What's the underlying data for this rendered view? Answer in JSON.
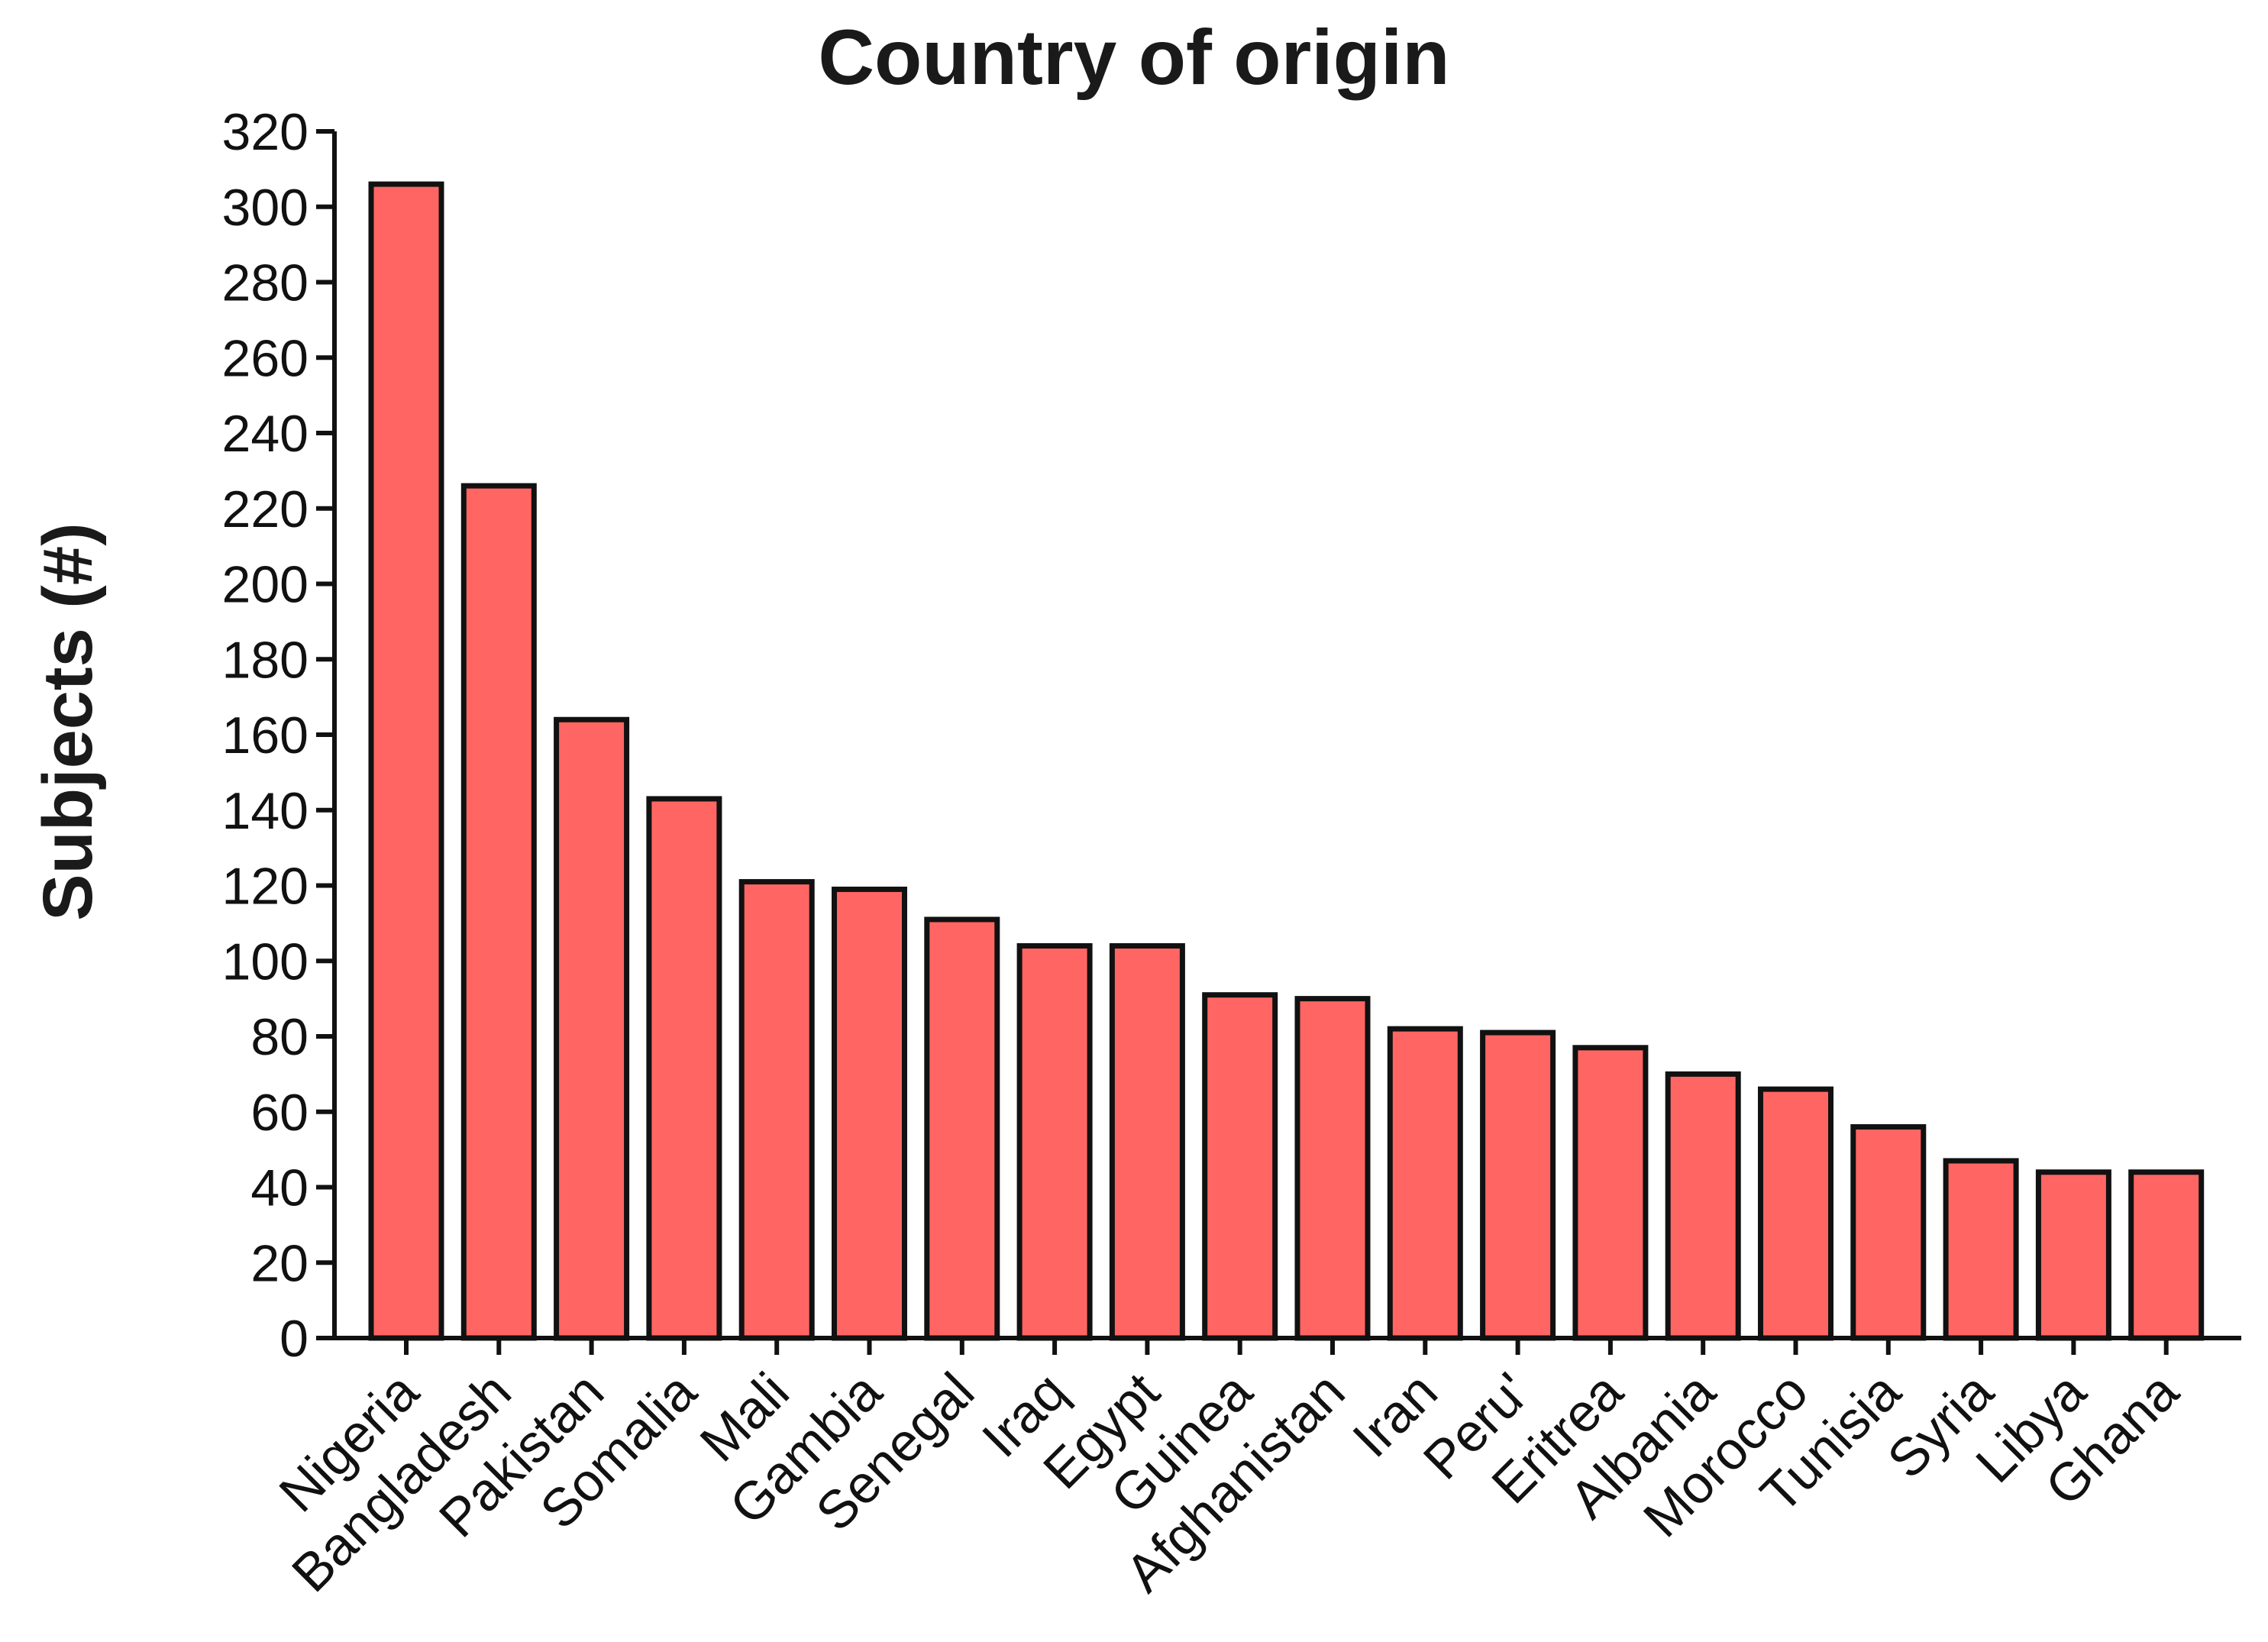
{
  "colors": {
    "bar_fill": "#FF6663",
    "axis": "#111111",
    "text": "#1a1a1a"
  },
  "chart_data": {
    "type": "bar",
    "title": "Country of origin",
    "xlabel": "",
    "ylabel": "Subjects (#)",
    "ylim": [
      0,
      320
    ],
    "yticks": [
      0,
      20,
      40,
      60,
      80,
      100,
      120,
      140,
      160,
      180,
      200,
      220,
      240,
      260,
      280,
      300,
      320
    ],
    "grid": false,
    "legend": "none",
    "categories": [
      "Nigeria",
      "Bangladesh",
      "Pakistan",
      "Somalia",
      "Mali",
      "Gambia",
      "Senegal",
      "Iraq",
      "Egypt",
      "Guinea",
      "Afghanistan",
      "Iran",
      "Peru'",
      "Eritrea",
      "Albania",
      "Morocco",
      "Tunisia",
      "Syria",
      "Libya",
      "Ghana"
    ],
    "values": [
      306,
      226,
      164,
      143,
      121,
      119,
      111,
      104,
      104,
      91,
      90,
      82,
      81,
      77,
      70,
      66,
      56,
      47,
      44,
      44
    ]
  }
}
